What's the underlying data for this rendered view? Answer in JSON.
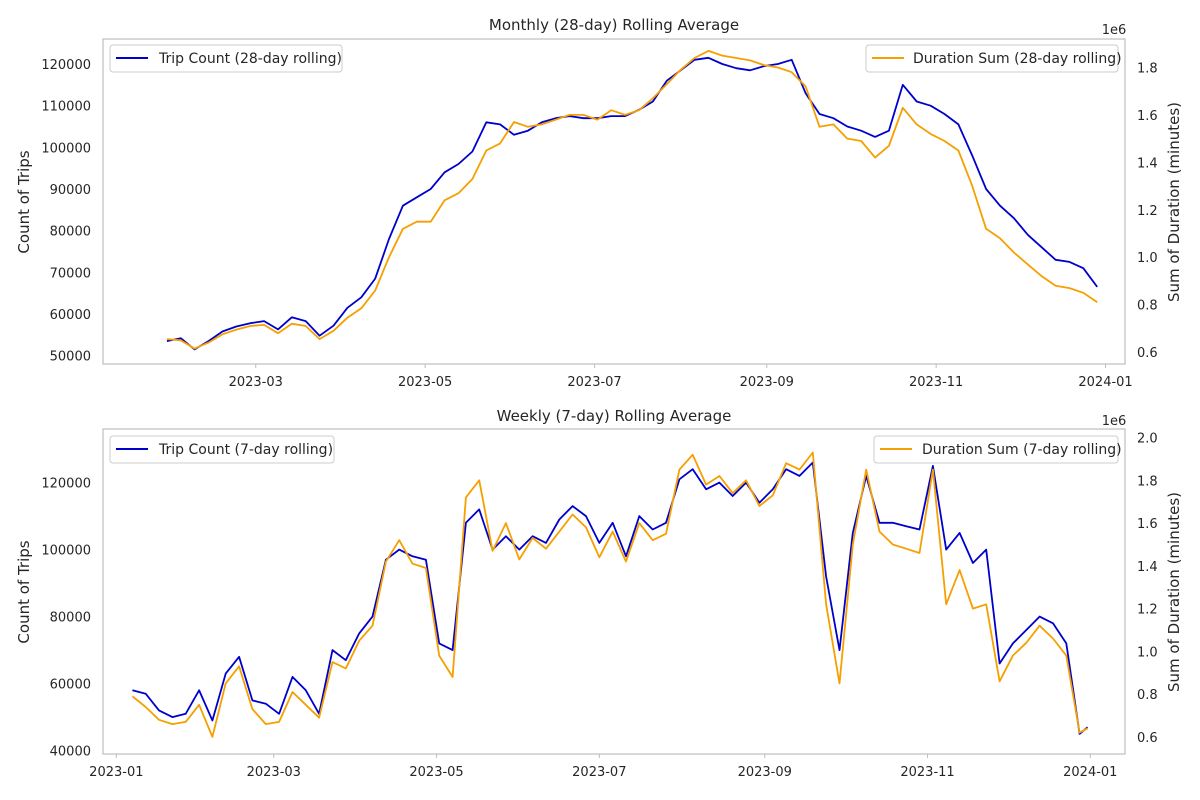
{
  "chart_data": [
    {
      "type": "line",
      "title": "Monthly (28-day) Rolling Average",
      "xlabel": "",
      "ylabel": "Count of Trips",
      "ylabel_right": "Sum of Duration (minutes)",
      "right_offset_label": "1e6",
      "xlim": [
        "2023-01-05",
        "2024-01-08"
      ],
      "xticks": [
        "2023-03-01",
        "2023-05-01",
        "2023-07-01",
        "2023-09-01",
        "2023-11-01",
        "2024-01-01"
      ],
      "xtick_labels": [
        "2023-03",
        "2023-05",
        "2023-07",
        "2023-09",
        "2023-11",
        "2024-01"
      ],
      "ylim": [
        48000,
        126000
      ],
      "yticks": [
        50000,
        60000,
        70000,
        80000,
        90000,
        100000,
        110000,
        120000
      ],
      "ylim_right": [
        0.55,
        1.92
      ],
      "yticks_right": [
        0.6,
        0.8,
        1.0,
        1.2,
        1.4,
        1.6,
        1.8
      ],
      "grid": false,
      "legend_left": "top-left",
      "legend_right": "top-right",
      "series": [
        {
          "name": "Trip Count (28-day rolling)",
          "axis": "left",
          "color": "#0000cd",
          "x": [
            "2023-01-28",
            "2023-02-02",
            "2023-02-07",
            "2023-02-12",
            "2023-02-17",
            "2023-02-22",
            "2023-02-27",
            "2023-03-04",
            "2023-03-09",
            "2023-03-14",
            "2023-03-19",
            "2023-03-24",
            "2023-03-29",
            "2023-04-03",
            "2023-04-08",
            "2023-04-13",
            "2023-04-18",
            "2023-04-23",
            "2023-04-28",
            "2023-05-03",
            "2023-05-08",
            "2023-05-13",
            "2023-05-18",
            "2023-05-23",
            "2023-05-28",
            "2023-06-02",
            "2023-06-07",
            "2023-06-12",
            "2023-06-17",
            "2023-06-22",
            "2023-06-27",
            "2023-07-02",
            "2023-07-07",
            "2023-07-12",
            "2023-07-17",
            "2023-07-22",
            "2023-07-27",
            "2023-08-01",
            "2023-08-06",
            "2023-08-11",
            "2023-08-16",
            "2023-08-21",
            "2023-08-26",
            "2023-08-31",
            "2023-09-05",
            "2023-09-10",
            "2023-09-15",
            "2023-09-20",
            "2023-09-25",
            "2023-09-30",
            "2023-10-05",
            "2023-10-10",
            "2023-10-15",
            "2023-10-20",
            "2023-10-25",
            "2023-10-30",
            "2023-11-04",
            "2023-11-09",
            "2023-11-14",
            "2023-11-19",
            "2023-11-24",
            "2023-11-29",
            "2023-12-04",
            "2023-12-09",
            "2023-12-14",
            "2023-12-19",
            "2023-12-24",
            "2023-12-29"
          ],
          "values": [
            53500,
            54200,
            51500,
            53500,
            55800,
            57000,
            57800,
            58300,
            56300,
            59200,
            58300,
            54800,
            57200,
            61500,
            64000,
            68500,
            78000,
            86000,
            88000,
            90000,
            94000,
            96000,
            99000,
            106000,
            105500,
            103000,
            104000,
            106000,
            107000,
            107500,
            107000,
            107000,
            107500,
            107500,
            109000,
            111000,
            116000,
            118500,
            121000,
            121500,
            120000,
            119000,
            118500,
            119500,
            120000,
            121000,
            113000,
            108000,
            107000,
            105000,
            104000,
            102500,
            104000,
            115000,
            111000,
            110000,
            108000,
            105500,
            98000,
            90000,
            86000,
            83000,
            79000,
            76000,
            73000,
            72500,
            71000,
            66500
          ]
        },
        {
          "name": "Duration Sum (28-day rolling)",
          "axis": "right",
          "color": "#f5a000",
          "x": [
            "2023-01-28",
            "2023-02-02",
            "2023-02-07",
            "2023-02-12",
            "2023-02-17",
            "2023-02-22",
            "2023-02-27",
            "2023-03-04",
            "2023-03-09",
            "2023-03-14",
            "2023-03-19",
            "2023-03-24",
            "2023-03-29",
            "2023-04-03",
            "2023-04-08",
            "2023-04-13",
            "2023-04-18",
            "2023-04-23",
            "2023-04-28",
            "2023-05-03",
            "2023-05-08",
            "2023-05-13",
            "2023-05-18",
            "2023-05-23",
            "2023-05-28",
            "2023-06-02",
            "2023-06-07",
            "2023-06-12",
            "2023-06-17",
            "2023-06-22",
            "2023-06-27",
            "2023-07-02",
            "2023-07-07",
            "2023-07-12",
            "2023-07-17",
            "2023-07-22",
            "2023-07-27",
            "2023-08-01",
            "2023-08-06",
            "2023-08-11",
            "2023-08-16",
            "2023-08-21",
            "2023-08-26",
            "2023-08-31",
            "2023-09-05",
            "2023-09-10",
            "2023-09-15",
            "2023-09-20",
            "2023-09-25",
            "2023-09-30",
            "2023-10-05",
            "2023-10-10",
            "2023-10-15",
            "2023-10-20",
            "2023-10-25",
            "2023-10-30",
            "2023-11-04",
            "2023-11-09",
            "2023-11-14",
            "2023-11-19",
            "2023-11-24",
            "2023-11-29",
            "2023-12-04",
            "2023-12-09",
            "2023-12-14",
            "2023-12-19",
            "2023-12-24",
            "2023-12-29"
          ],
          "values": [
            0.655,
            0.65,
            0.615,
            0.64,
            0.675,
            0.695,
            0.71,
            0.715,
            0.68,
            0.72,
            0.71,
            0.655,
            0.69,
            0.745,
            0.785,
            0.86,
            1.0,
            1.12,
            1.15,
            1.15,
            1.24,
            1.27,
            1.33,
            1.45,
            1.48,
            1.57,
            1.55,
            1.56,
            1.58,
            1.6,
            1.6,
            1.58,
            1.62,
            1.6,
            1.62,
            1.67,
            1.73,
            1.79,
            1.84,
            1.87,
            1.85,
            1.84,
            1.83,
            1.81,
            1.8,
            1.78,
            1.72,
            1.55,
            1.56,
            1.5,
            1.49,
            1.42,
            1.47,
            1.63,
            1.56,
            1.52,
            1.49,
            1.45,
            1.3,
            1.12,
            1.08,
            1.02,
            0.97,
            0.92,
            0.88,
            0.87,
            0.85,
            0.81
          ]
        }
      ]
    },
    {
      "type": "line",
      "title": "Weekly (7-day) Rolling Average",
      "xlabel": "",
      "ylabel": "Count of Trips",
      "ylabel_right": "Sum of Duration (minutes)",
      "right_offset_label": "1e6",
      "xlim": [
        "2022-12-27",
        "2024-01-14"
      ],
      "xticks": [
        "2023-01-01",
        "2023-03-01",
        "2023-05-01",
        "2023-07-01",
        "2023-09-01",
        "2023-11-01",
        "2024-01-01"
      ],
      "xtick_labels": [
        "2023-01",
        "2023-03",
        "2023-05",
        "2023-07",
        "2023-09",
        "2023-11",
        "2024-01"
      ],
      "ylim": [
        39000,
        136000
      ],
      "yticks": [
        40000,
        60000,
        80000,
        100000,
        120000
      ],
      "ylim_right": [
        0.52,
        2.04
      ],
      "yticks_right": [
        0.6,
        0.8,
        1.0,
        1.2,
        1.4,
        1.6,
        1.8,
        2.0
      ],
      "grid": false,
      "legend_left": "top-left",
      "legend_right": "top-right",
      "series": [
        {
          "name": "Trip Count (7-day rolling)",
          "axis": "left",
          "color": "#0000cd",
          "x": [
            "2023-01-07",
            "2023-01-12",
            "2023-01-17",
            "2023-01-22",
            "2023-01-27",
            "2023-02-01",
            "2023-02-06",
            "2023-02-11",
            "2023-02-16",
            "2023-02-21",
            "2023-02-26",
            "2023-03-03",
            "2023-03-08",
            "2023-03-13",
            "2023-03-18",
            "2023-03-23",
            "2023-03-28",
            "2023-04-02",
            "2023-04-07",
            "2023-04-12",
            "2023-04-17",
            "2023-04-22",
            "2023-04-27",
            "2023-05-02",
            "2023-05-07",
            "2023-05-12",
            "2023-05-17",
            "2023-05-22",
            "2023-05-27",
            "2023-06-01",
            "2023-06-06",
            "2023-06-11",
            "2023-06-16",
            "2023-06-21",
            "2023-06-26",
            "2023-07-01",
            "2023-07-06",
            "2023-07-11",
            "2023-07-16",
            "2023-07-21",
            "2023-07-26",
            "2023-07-31",
            "2023-08-05",
            "2023-08-10",
            "2023-08-15",
            "2023-08-20",
            "2023-08-25",
            "2023-08-30",
            "2023-09-04",
            "2023-09-09",
            "2023-09-14",
            "2023-09-19",
            "2023-09-24",
            "2023-09-29",
            "2023-10-04",
            "2023-10-09",
            "2023-10-14",
            "2023-10-19",
            "2023-10-24",
            "2023-10-29",
            "2023-11-03",
            "2023-11-08",
            "2023-11-13",
            "2023-11-18",
            "2023-11-23",
            "2023-11-28",
            "2023-12-03",
            "2023-12-08",
            "2023-12-13",
            "2023-12-18",
            "2023-12-23",
            "2023-12-28",
            "2023-12-31"
          ],
          "values": [
            58000,
            57000,
            52000,
            50000,
            51000,
            58000,
            49000,
            63000,
            68000,
            55000,
            54000,
            51000,
            62000,
            58000,
            51000,
            70000,
            67000,
            75000,
            80000,
            97000,
            100000,
            98000,
            97000,
            72000,
            70000,
            108000,
            112000,
            100000,
            104000,
            100000,
            104000,
            102000,
            109000,
            113000,
            110000,
            102000,
            108000,
            98000,
            110000,
            106000,
            108000,
            121000,
            124000,
            118000,
            120000,
            116000,
            120000,
            114000,
            118000,
            124000,
            122000,
            126000,
            92000,
            70000,
            105000,
            122000,
            108000,
            108000,
            107000,
            106000,
            125000,
            100000,
            105000,
            96000,
            100000,
            66000,
            72000,
            76000,
            80000,
            78000,
            72000,
            45000,
            47000
          ]
        },
        {
          "name": "Duration Sum (7-day rolling)",
          "axis": "right",
          "color": "#f5a000",
          "x": [
            "2023-01-07",
            "2023-01-12",
            "2023-01-17",
            "2023-01-22",
            "2023-01-27",
            "2023-02-01",
            "2023-02-06",
            "2023-02-11",
            "2023-02-16",
            "2023-02-21",
            "2023-02-26",
            "2023-03-03",
            "2023-03-08",
            "2023-03-13",
            "2023-03-18",
            "2023-03-23",
            "2023-03-28",
            "2023-04-02",
            "2023-04-07",
            "2023-04-12",
            "2023-04-17",
            "2023-04-22",
            "2023-04-27",
            "2023-05-02",
            "2023-05-07",
            "2023-05-12",
            "2023-05-17",
            "2023-05-22",
            "2023-05-27",
            "2023-06-01",
            "2023-06-06",
            "2023-06-11",
            "2023-06-16",
            "2023-06-21",
            "2023-06-26",
            "2023-07-01",
            "2023-07-06",
            "2023-07-11",
            "2023-07-16",
            "2023-07-21",
            "2023-07-26",
            "2023-07-31",
            "2023-08-05",
            "2023-08-10",
            "2023-08-15",
            "2023-08-20",
            "2023-08-25",
            "2023-08-30",
            "2023-09-04",
            "2023-09-09",
            "2023-09-14",
            "2023-09-19",
            "2023-09-24",
            "2023-09-29",
            "2023-10-04",
            "2023-10-09",
            "2023-10-14",
            "2023-10-19",
            "2023-10-24",
            "2023-10-29",
            "2023-11-03",
            "2023-11-08",
            "2023-11-13",
            "2023-11-18",
            "2023-11-23",
            "2023-11-28",
            "2023-12-03",
            "2023-12-08",
            "2023-12-13",
            "2023-12-18",
            "2023-12-23",
            "2023-12-28",
            "2023-12-31"
          ],
          "values": [
            0.79,
            0.74,
            0.68,
            0.66,
            0.67,
            0.75,
            0.6,
            0.85,
            0.93,
            0.73,
            0.66,
            0.67,
            0.81,
            0.75,
            0.69,
            0.95,
            0.92,
            1.05,
            1.12,
            1.42,
            1.52,
            1.41,
            1.39,
            0.98,
            0.88,
            1.72,
            1.8,
            1.47,
            1.6,
            1.43,
            1.53,
            1.48,
            1.56,
            1.64,
            1.58,
            1.44,
            1.56,
            1.42,
            1.6,
            1.52,
            1.55,
            1.85,
            1.92,
            1.78,
            1.82,
            1.74,
            1.8,
            1.68,
            1.73,
            1.88,
            1.85,
            1.93,
            1.22,
            0.85,
            1.5,
            1.85,
            1.56,
            1.5,
            1.48,
            1.46,
            1.85,
            1.22,
            1.38,
            1.2,
            1.22,
            0.86,
            0.98,
            1.04,
            1.12,
            1.06,
            0.98,
            0.62,
            0.64
          ]
        }
      ]
    }
  ]
}
